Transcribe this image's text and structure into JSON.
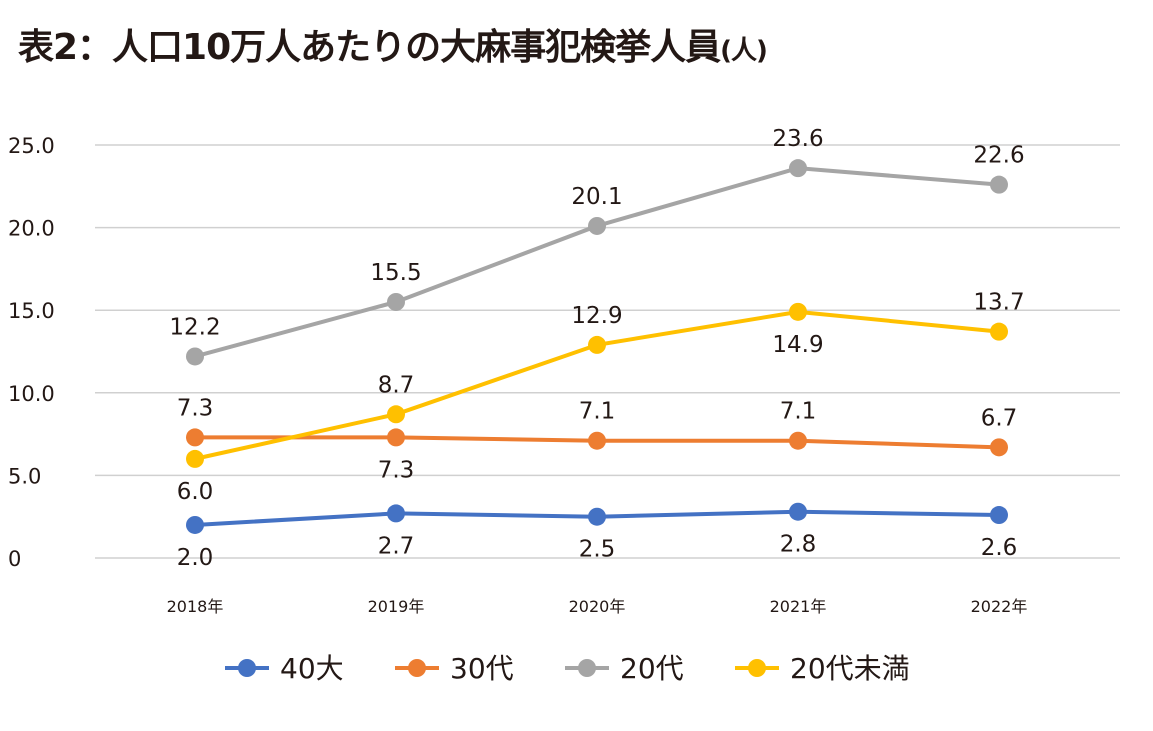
{
  "chart_data": {
    "type": "line",
    "title": "表2：人口10万人あたりの大麻事犯検挙人員",
    "unit": "(人)",
    "categories": [
      "2018年",
      "2019年",
      "2020年",
      "2021年",
      "2022年"
    ],
    "ylim": [
      0,
      25
    ],
    "yticks": [
      "0",
      "5.0",
      "10.0",
      "15.0",
      "20.0",
      "25.0"
    ],
    "ytick_values": [
      0,
      5,
      10,
      15,
      20,
      25
    ],
    "grid": true,
    "legend_position": "bottom",
    "series": [
      {
        "name": "40大",
        "color": "#4472c4",
        "values": [
          2.0,
          2.7,
          2.5,
          2.8,
          2.6
        ],
        "labels": [
          "2.0",
          "2.7",
          "2.5",
          "2.8",
          "2.6"
        ]
      },
      {
        "name": "30代",
        "color": "#ed7d31",
        "values": [
          7.3,
          7.3,
          7.1,
          7.1,
          6.7
        ],
        "labels": [
          "7.3",
          "7.3",
          "7.1",
          "7.1",
          "6.7"
        ]
      },
      {
        "name": "20代",
        "color": "#a5a5a5",
        "values": [
          12.2,
          15.5,
          20.1,
          23.6,
          22.6
        ],
        "labels": [
          "12.2",
          "15.5",
          "20.1",
          "23.6",
          "22.6"
        ]
      },
      {
        "name": "20代未満",
        "color": "#ffc000",
        "values": [
          6.0,
          8.7,
          12.9,
          14.9,
          13.7
        ],
        "labels": [
          "6.0",
          "8.7",
          "12.9",
          "14.9",
          "13.7"
        ]
      }
    ]
  }
}
